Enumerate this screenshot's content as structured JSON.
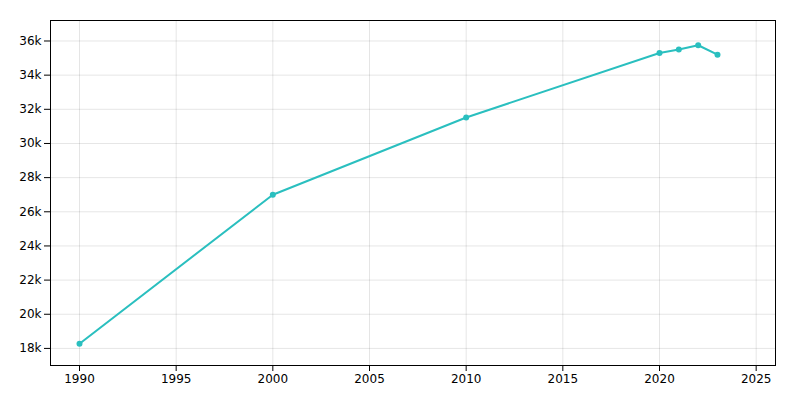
{
  "chart_data": {
    "type": "line",
    "x": [
      1990,
      2000,
      2010,
      2020,
      2021,
      2022,
      2023
    ],
    "values": [
      18277,
      27000,
      31522,
      35300,
      35500,
      35750,
      35200
    ],
    "color": "#2abfbf",
    "marker": "circle",
    "xlim": [
      1988.5,
      2026
    ],
    "ylim": [
      17000,
      37200
    ],
    "xticks": [
      1990,
      1995,
      2000,
      2005,
      2010,
      2015,
      2020,
      2025
    ],
    "yticks": [
      {
        "value": 18000,
        "label": "18k"
      },
      {
        "value": 20000,
        "label": "20k"
      },
      {
        "value": 22000,
        "label": "22k"
      },
      {
        "value": 24000,
        "label": "24k"
      },
      {
        "value": 26000,
        "label": "26k"
      },
      {
        "value": 28000,
        "label": "28k"
      },
      {
        "value": 30000,
        "label": "30k"
      },
      {
        "value": 32000,
        "label": "32k"
      },
      {
        "value": 34000,
        "label": "34k"
      },
      {
        "value": 36000,
        "label": "36k"
      }
    ],
    "grid": true
  }
}
